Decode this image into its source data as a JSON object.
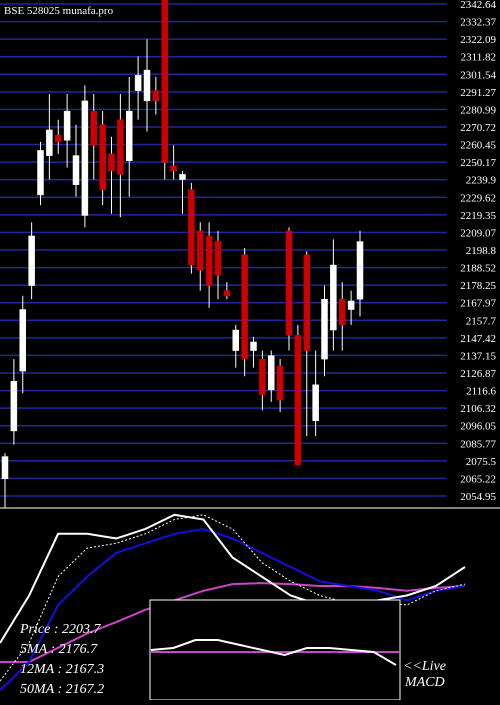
{
  "chart_data": {
    "type": "candlestick",
    "title": "BSE 528025 munafa.pro",
    "ylim": [
      2047.93,
      2344.98
    ],
    "yticks": [
      2342.64,
      2332.37,
      2322.09,
      2311.82,
      2301.54,
      2291.27,
      2280.99,
      2270.72,
      2260.45,
      2250.17,
      2239.9,
      2229.62,
      2219.35,
      2209.07,
      2198.8,
      2188.52,
      2178.25,
      2167.97,
      2157.7,
      2147.42,
      2137.15,
      2126.87,
      2116.6,
      2106.32,
      2096.05,
      2085.77,
      2075.5,
      2065.22,
      2054.95
    ],
    "grid": true,
    "up_color": "#ffffff",
    "down_color": "#cc0000",
    "grid_color": "#1c2a9c",
    "open": [
      2065,
      2093,
      2128,
      2178,
      2231,
      2254,
      2266,
      2263,
      2237,
      2219,
      2280,
      2272,
      2255,
      2275,
      2251,
      2292,
      2286,
      2292,
      2345,
      2248,
      2240,
      2234,
      2210,
      2207,
      2204,
      2175,
      2140,
      2196,
      2140,
      2135,
      2117,
      2131,
      2210,
      2149,
      2196,
      2099,
      2135,
      2152,
      2170,
      2164,
      2170
    ],
    "high": [
      2080,
      2135,
      2172,
      2215,
      2262,
      2290,
      2275,
      2290,
      2272,
      2295,
      2290,
      2280,
      2265,
      2290,
      2300,
      2312,
      2322,
      2300,
      2345,
      2260,
      2245,
      2238,
      2215,
      2215,
      2210,
      2180,
      2155,
      2200,
      2148,
      2140,
      2140,
      2135,
      2212,
      2155,
      2198,
      2140,
      2178,
      2205,
      2180,
      2175,
      2210
    ],
    "low": [
      2048,
      2085,
      2115,
      2170,
      2225,
      2240,
      2255,
      2247,
      2230,
      2212,
      2240,
      2225,
      2220,
      2218,
      2230,
      2275,
      2268,
      2278,
      2240,
      2240,
      2220,
      2185,
      2175,
      2165,
      2170,
      2170,
      2130,
      2125,
      2130,
      2105,
      2110,
      2104,
      2140,
      2073,
      2090,
      2090,
      2125,
      2140,
      2140,
      2155,
      2160
    ],
    "close": [
      2078,
      2122,
      2164,
      2207,
      2257,
      2269,
      2262,
      2280,
      2254,
      2286,
      2260,
      2234,
      2245,
      2243,
      2280,
      2301,
      2304,
      2286,
      2250,
      2245,
      2243,
      2190,
      2187,
      2178,
      2184,
      2172,
      2152,
      2135,
      2145,
      2114,
      2137,
      2111,
      2149,
      2073,
      2140,
      2120,
      2170,
      2190,
      2155,
      2169,
      2203.7
    ],
    "indicators": {
      "ylim": [
        0,
        200
      ],
      "series": [
        {
          "color": "#cc44cc",
          "dash": false,
          "values": [
            40,
            40,
            55,
            70,
            82,
            95,
            105,
            115,
            122,
            123,
            122,
            120,
            120,
            118,
            115,
            118,
            120
          ]
        },
        {
          "color": "#1010dd",
          "dash": false,
          "values": [
            10,
            40,
            100,
            130,
            155,
            165,
            175,
            180,
            170,
            155,
            140,
            125,
            120,
            115,
            105,
            115,
            120
          ]
        },
        {
          "color": "#ffffff",
          "dash": true,
          "values": [
            20,
            60,
            130,
            160,
            165,
            175,
            190,
            195,
            180,
            145,
            125,
            110,
            102,
            103,
            100,
            115,
            122
          ]
        },
        {
          "color": "#ffffff",
          "dash": false,
          "values": [
            60,
            110,
            175,
            175,
            170,
            180,
            195,
            190,
            150,
            130,
            110,
            100,
            100,
            105,
            110,
            120,
            140
          ]
        }
      ]
    },
    "macd": {
      "ylim": [
        0,
        100
      ],
      "signal": {
        "color": "#cc44cc",
        "value": 48
      },
      "line": {
        "color": "#ffffff",
        "values": [
          50,
          52,
          60,
          60,
          55,
          50,
          45,
          52,
          52,
          50,
          48,
          35
        ]
      }
    },
    "legend": [
      "Price : 2203.7",
      "5MA : 2176.7",
      "12MA : 2167.3",
      "50MA : 2167.2"
    ],
    "macd_label": [
      "<<Live",
      "MACD"
    ]
  }
}
